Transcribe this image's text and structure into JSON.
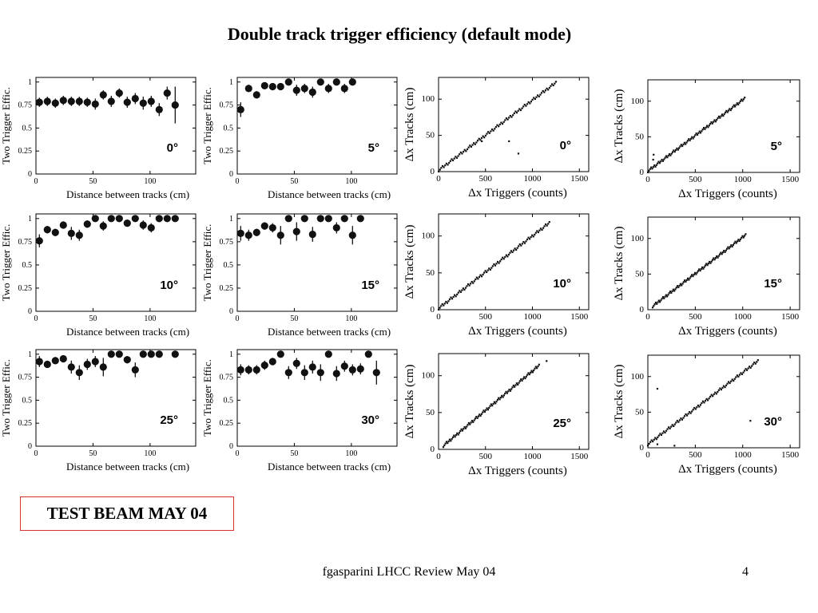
{
  "slide": {
    "title": "Double track trigger efficiency (default mode)",
    "beam_label": "TEST BEAM MAY 04",
    "footer": "fgasparini  LHCC Review May 04",
    "page_number": "4"
  },
  "chart_data": [
    {
      "type": "scatter",
      "angle_label": "0°",
      "xlabel": "Distance between tracks (cm)",
      "ylabel": "Two Trigger Effic.",
      "xlim": [
        0,
        140
      ],
      "ylim": [
        0,
        1.05
      ],
      "xticks": [
        0,
        50,
        100
      ],
      "yticks": [
        0,
        0.25,
        0.5,
        0.75,
        1
      ],
      "points": [
        {
          "x": 3,
          "y": 0.78,
          "err": 0.05
        },
        {
          "x": 10,
          "y": 0.79,
          "err": 0.05
        },
        {
          "x": 17,
          "y": 0.77,
          "err": 0.05
        },
        {
          "x": 24,
          "y": 0.8,
          "err": 0.05
        },
        {
          "x": 31,
          "y": 0.79,
          "err": 0.05
        },
        {
          "x": 38,
          "y": 0.79,
          "err": 0.05
        },
        {
          "x": 45,
          "y": 0.78,
          "err": 0.05
        },
        {
          "x": 52,
          "y": 0.76,
          "err": 0.06
        },
        {
          "x": 59,
          "y": 0.86,
          "err": 0.05
        },
        {
          "x": 66,
          "y": 0.79,
          "err": 0.06
        },
        {
          "x": 73,
          "y": 0.88,
          "err": 0.05
        },
        {
          "x": 80,
          "y": 0.78,
          "err": 0.06
        },
        {
          "x": 87,
          "y": 0.82,
          "err": 0.06
        },
        {
          "x": 94,
          "y": 0.77,
          "err": 0.07
        },
        {
          "x": 101,
          "y": 0.79,
          "err": 0.06
        },
        {
          "x": 108,
          "y": 0.7,
          "err": 0.07
        },
        {
          "x": 115,
          "y": 0.88,
          "err": 0.07
        },
        {
          "x": 122,
          "y": 0.75,
          "err": 0.2
        }
      ]
    },
    {
      "type": "scatter",
      "angle_label": "5°",
      "xlabel": "Distance between tracks (cm)",
      "ylabel": "Two Trigger Effic.",
      "xlim": [
        0,
        140
      ],
      "ylim": [
        0,
        1.05
      ],
      "xticks": [
        0,
        50,
        100
      ],
      "yticks": [
        0,
        0.25,
        0.5,
        0.75,
        1
      ],
      "points": [
        {
          "x": 3,
          "y": 0.7,
          "err": 0.08
        },
        {
          "x": 10,
          "y": 0.93,
          "err": 0.04
        },
        {
          "x": 17,
          "y": 0.86,
          "err": 0.04
        },
        {
          "x": 24,
          "y": 0.96,
          "err": 0.03
        },
        {
          "x": 31,
          "y": 0.95,
          "err": 0.03
        },
        {
          "x": 38,
          "y": 0.95,
          "err": 0.03
        },
        {
          "x": 45,
          "y": 1.0,
          "err": 0.02
        },
        {
          "x": 52,
          "y": 0.91,
          "err": 0.06
        },
        {
          "x": 59,
          "y": 0.93,
          "err": 0.05
        },
        {
          "x": 66,
          "y": 0.89,
          "err": 0.06
        },
        {
          "x": 73,
          "y": 1.0,
          "err": 0.02
        },
        {
          "x": 80,
          "y": 0.93,
          "err": 0.05
        },
        {
          "x": 87,
          "y": 1.0,
          "err": 0.02
        },
        {
          "x": 94,
          "y": 0.93,
          "err": 0.05
        },
        {
          "x": 101,
          "y": 1.0,
          "err": 0.02
        }
      ]
    },
    {
      "type": "scatter",
      "angle_label": "0°",
      "xlabel": "Δx Triggers (counts)",
      "ylabel": "Δx Tracks (cm)",
      "xlim": [
        0,
        1600
      ],
      "ylim": [
        0,
        130
      ],
      "xticks": [
        0,
        500,
        1000,
        1500
      ],
      "yticks": [
        0,
        50,
        100
      ],
      "line": {
        "x_start": 0,
        "y_start": 2,
        "x_end": 1250,
        "y_end": 123
      },
      "outliers": [
        [
          850,
          25
        ],
        [
          750,
          42
        ],
        [
          460,
          42
        ]
      ]
    },
    {
      "type": "scatter",
      "angle_label": "5°",
      "xlabel": "Δx Triggers (counts)",
      "ylabel": "Δx Tracks (cm)",
      "xlim": [
        0,
        1600
      ],
      "ylim": [
        0,
        130
      ],
      "xticks": [
        0,
        500,
        1000,
        1500
      ],
      "yticks": [
        0,
        50,
        100
      ],
      "line": {
        "x_start": 0,
        "y_start": 2,
        "x_end": 1020,
        "y_end": 104
      },
      "outliers": [
        [
          60,
          25
        ],
        [
          55,
          18
        ]
      ]
    },
    {
      "type": "scatter",
      "angle_label": "10°",
      "xlabel": "Distance between tracks (cm)",
      "ylabel": "Two Trigger Effic.",
      "xlim": [
        0,
        140
      ],
      "ylim": [
        0,
        1.05
      ],
      "xticks": [
        0,
        50,
        100
      ],
      "yticks": [
        0,
        0.25,
        0.5,
        0.75,
        1
      ],
      "points": [
        {
          "x": 3,
          "y": 0.76,
          "err": 0.07
        },
        {
          "x": 10,
          "y": 0.88,
          "err": 0.04
        },
        {
          "x": 17,
          "y": 0.85,
          "err": 0.04
        },
        {
          "x": 24,
          "y": 0.93,
          "err": 0.04
        },
        {
          "x": 31,
          "y": 0.84,
          "err": 0.07
        },
        {
          "x": 38,
          "y": 0.82,
          "err": 0.06
        },
        {
          "x": 45,
          "y": 0.94,
          "err": 0.04
        },
        {
          "x": 52,
          "y": 1.0,
          "err": 0.02
        },
        {
          "x": 59,
          "y": 0.92,
          "err": 0.05
        },
        {
          "x": 66,
          "y": 1.0,
          "err": 0.02
        },
        {
          "x": 73,
          "y": 1.0,
          "err": 0.02
        },
        {
          "x": 80,
          "y": 0.95,
          "err": 0.03
        },
        {
          "x": 87,
          "y": 1.0,
          "err": 0.02
        },
        {
          "x": 94,
          "y": 0.93,
          "err": 0.05
        },
        {
          "x": 101,
          "y": 0.9,
          "err": 0.05
        },
        {
          "x": 108,
          "y": 1.0,
          "err": 0.02
        },
        {
          "x": 115,
          "y": 1.0,
          "err": 0.02
        },
        {
          "x": 122,
          "y": 1.0,
          "err": 0.02
        }
      ]
    },
    {
      "type": "scatter",
      "angle_label": "15°",
      "xlabel": "Distance between tracks (cm)",
      "ylabel": "Two Trigger Effic.",
      "xlim": [
        0,
        140
      ],
      "ylim": [
        0,
        1.05
      ],
      "xticks": [
        0,
        50,
        100
      ],
      "yticks": [
        0,
        0.25,
        0.5,
        0.75,
        1
      ],
      "points": [
        {
          "x": 3,
          "y": 0.84,
          "err": 0.08
        },
        {
          "x": 10,
          "y": 0.82,
          "err": 0.06
        },
        {
          "x": 17,
          "y": 0.85,
          "err": 0.04
        },
        {
          "x": 24,
          "y": 0.92,
          "err": 0.04
        },
        {
          "x": 31,
          "y": 0.9,
          "err": 0.05
        },
        {
          "x": 38,
          "y": 0.82,
          "err": 0.1
        },
        {
          "x": 45,
          "y": 1.0,
          "err": 0.02
        },
        {
          "x": 52,
          "y": 0.86,
          "err": 0.1
        },
        {
          "x": 59,
          "y": 1.0,
          "err": 0.02
        },
        {
          "x": 66,
          "y": 0.83,
          "err": 0.08
        },
        {
          "x": 73,
          "y": 1.0,
          "err": 0.02
        },
        {
          "x": 80,
          "y": 1.0,
          "err": 0.02
        },
        {
          "x": 87,
          "y": 0.9,
          "err": 0.06
        },
        {
          "x": 94,
          "y": 1.0,
          "err": 0.02
        },
        {
          "x": 101,
          "y": 0.82,
          "err": 0.1
        },
        {
          "x": 108,
          "y": 1.0,
          "err": 0.02
        }
      ]
    },
    {
      "type": "scatter",
      "angle_label": "10°",
      "xlabel": "Δx Triggers (counts)",
      "ylabel": "Δx Tracks (cm)",
      "xlim": [
        0,
        1600
      ],
      "ylim": [
        0,
        130
      ],
      "xticks": [
        0,
        500,
        1000,
        1500
      ],
      "yticks": [
        0,
        50,
        100
      ],
      "line": {
        "x_start": 0,
        "y_start": 2,
        "x_end": 1180,
        "y_end": 118
      },
      "outliers": []
    },
    {
      "type": "scatter",
      "angle_label": "15°",
      "xlabel": "Δx Triggers (counts)",
      "ylabel": "Δx Tracks (cm)",
      "xlim": [
        0,
        1600
      ],
      "ylim": [
        0,
        130
      ],
      "xticks": [
        0,
        500,
        1000,
        1500
      ],
      "yticks": [
        0,
        50,
        100
      ],
      "line": {
        "x_start": 50,
        "y_start": 5,
        "x_end": 1030,
        "y_end": 105
      },
      "outliers": []
    },
    {
      "type": "scatter",
      "angle_label": "25°",
      "xlabel": "Distance between tracks (cm)",
      "ylabel": "Two Trigger Effic.",
      "xlim": [
        0,
        140
      ],
      "ylim": [
        0,
        1.05
      ],
      "xticks": [
        0,
        50,
        100
      ],
      "yticks": [
        0,
        0.25,
        0.5,
        0.75,
        1
      ],
      "points": [
        {
          "x": 3,
          "y": 0.92,
          "err": 0.06
        },
        {
          "x": 10,
          "y": 0.89,
          "err": 0.04
        },
        {
          "x": 17,
          "y": 0.93,
          "err": 0.04
        },
        {
          "x": 24,
          "y": 0.95,
          "err": 0.03
        },
        {
          "x": 31,
          "y": 0.86,
          "err": 0.07
        },
        {
          "x": 38,
          "y": 0.8,
          "err": 0.08
        },
        {
          "x": 45,
          "y": 0.89,
          "err": 0.06
        },
        {
          "x": 52,
          "y": 0.92,
          "err": 0.06
        },
        {
          "x": 59,
          "y": 0.86,
          "err": 0.1
        },
        {
          "x": 66,
          "y": 1.0,
          "err": 0.02
        },
        {
          "x": 73,
          "y": 1.0,
          "err": 0.02
        },
        {
          "x": 80,
          "y": 0.94,
          "err": 0.04
        },
        {
          "x": 87,
          "y": 0.83,
          "err": 0.08
        },
        {
          "x": 94,
          "y": 1.0,
          "err": 0.02
        },
        {
          "x": 101,
          "y": 1.0,
          "err": 0.02
        },
        {
          "x": 108,
          "y": 1.0,
          "err": 0.02
        },
        {
          "x": 122,
          "y": 1.0,
          "err": 0.02
        }
      ]
    },
    {
      "type": "scatter",
      "angle_label": "30°",
      "xlabel": "Distance between tracks (cm)",
      "ylabel": "Two Trigger Effic.",
      "xlim": [
        0,
        140
      ],
      "ylim": [
        0,
        1.05
      ],
      "xticks": [
        0,
        50,
        100
      ],
      "yticks": [
        0,
        0.25,
        0.5,
        0.75,
        1
      ],
      "points": [
        {
          "x": 3,
          "y": 0.83,
          "err": 0.06
        },
        {
          "x": 10,
          "y": 0.83,
          "err": 0.05
        },
        {
          "x": 17,
          "y": 0.83,
          "err": 0.05
        },
        {
          "x": 24,
          "y": 0.88,
          "err": 0.05
        },
        {
          "x": 31,
          "y": 0.92,
          "err": 0.04
        },
        {
          "x": 38,
          "y": 1.0,
          "err": 0.02
        },
        {
          "x": 45,
          "y": 0.8,
          "err": 0.07
        },
        {
          "x": 52,
          "y": 0.9,
          "err": 0.06
        },
        {
          "x": 59,
          "y": 0.8,
          "err": 0.08
        },
        {
          "x": 66,
          "y": 0.86,
          "err": 0.07
        },
        {
          "x": 73,
          "y": 0.8,
          "err": 0.09
        },
        {
          "x": 80,
          "y": 1.0,
          "err": 0.02
        },
        {
          "x": 87,
          "y": 0.79,
          "err": 0.08
        },
        {
          "x": 94,
          "y": 0.87,
          "err": 0.06
        },
        {
          "x": 101,
          "y": 0.83,
          "err": 0.06
        },
        {
          "x": 108,
          "y": 0.84,
          "err": 0.06
        },
        {
          "x": 115,
          "y": 1.0,
          "err": 0.02
        },
        {
          "x": 122,
          "y": 0.8,
          "err": 0.13
        }
      ]
    },
    {
      "type": "scatter",
      "angle_label": "25°",
      "xlabel": "Δx Triggers (counts)",
      "ylabel": "Δx Tracks (cm)",
      "xlim": [
        0,
        1600
      ],
      "ylim": [
        0,
        130
      ],
      "xticks": [
        0,
        500,
        1000,
        1500
      ],
      "yticks": [
        0,
        50,
        100
      ],
      "line": {
        "x_start": 50,
        "y_start": 5,
        "x_end": 1070,
        "y_end": 114
      },
      "outliers": [
        [
          1000,
          105
        ],
        [
          1150,
          120
        ]
      ]
    },
    {
      "type": "scatter",
      "angle_label": "30°",
      "xlabel": "Δx Triggers (counts)",
      "ylabel": "Δx Tracks (cm)",
      "xlim": [
        0,
        1600
      ],
      "ylim": [
        0,
        130
      ],
      "xticks": [
        0,
        500,
        1000,
        1500
      ],
      "yticks": [
        0,
        50,
        100
      ],
      "line": {
        "x_start": 0,
        "y_start": 5,
        "x_end": 1160,
        "y_end": 122
      },
      "outliers": [
        [
          100,
          83
        ],
        [
          1080,
          38
        ],
        [
          100,
          5
        ],
        [
          280,
          3
        ]
      ]
    }
  ]
}
